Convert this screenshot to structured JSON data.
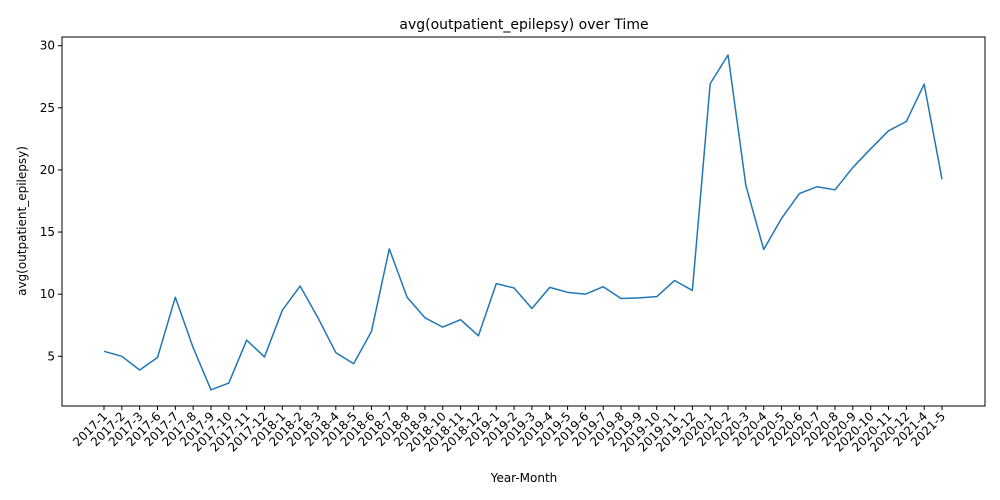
{
  "chart_data": {
    "type": "line",
    "title": "avg(outpatient_epilepsy) over Time",
    "xlabel": "Year-Month",
    "ylabel": "avg(outpatient_epilepsy)",
    "ylim": [
      1.0,
      30.7
    ],
    "yticks": [
      5,
      10,
      15,
      20,
      25,
      30
    ],
    "grid": false,
    "legend": "none",
    "line_color": "#1f77b4",
    "categories": [
      "2017-1",
      "2017-2",
      "2017-3",
      "2017-6",
      "2017-7",
      "2017-8",
      "2017-9",
      "2017-10",
      "2017-11",
      "2017-12",
      "2018-1",
      "2018-2",
      "2018-3",
      "2018-4",
      "2018-5",
      "2018-6",
      "2018-7",
      "2018-8",
      "2018-9",
      "2018-10",
      "2018-11",
      "2018-12",
      "2019-1",
      "2019-2",
      "2019-3",
      "2019-4",
      "2019-5",
      "2019-6",
      "2019-7",
      "2019-8",
      "2019-9",
      "2019-10",
      "2019-11",
      "2019-12",
      "2020-1",
      "2020-2",
      "2020-3",
      "2020-4",
      "2020-5",
      "2020-6",
      "2020-7",
      "2020-8",
      "2020-9",
      "2020-10",
      "2020-11",
      "2020-12",
      "2021-4",
      "2021-5"
    ],
    "series": [
      {
        "values": [
          5.4,
          5.0,
          3.9,
          4.9,
          9.75,
          5.7,
          2.3,
          2.85,
          6.3,
          4.95,
          8.7,
          10.65,
          8.1,
          5.3,
          4.4,
          7.0,
          13.65,
          9.75,
          8.1,
          7.35,
          7.95,
          6.65,
          10.85,
          10.5,
          8.85,
          10.55,
          10.15,
          10.0,
          10.6,
          9.65,
          9.7,
          9.8,
          11.1,
          10.3,
          26.95,
          29.25,
          18.75,
          13.6,
          16.1,
          18.1,
          18.65,
          18.4,
          20.2,
          21.7,
          23.15,
          23.9,
          26.9,
          19.25
        ]
      }
    ]
  }
}
